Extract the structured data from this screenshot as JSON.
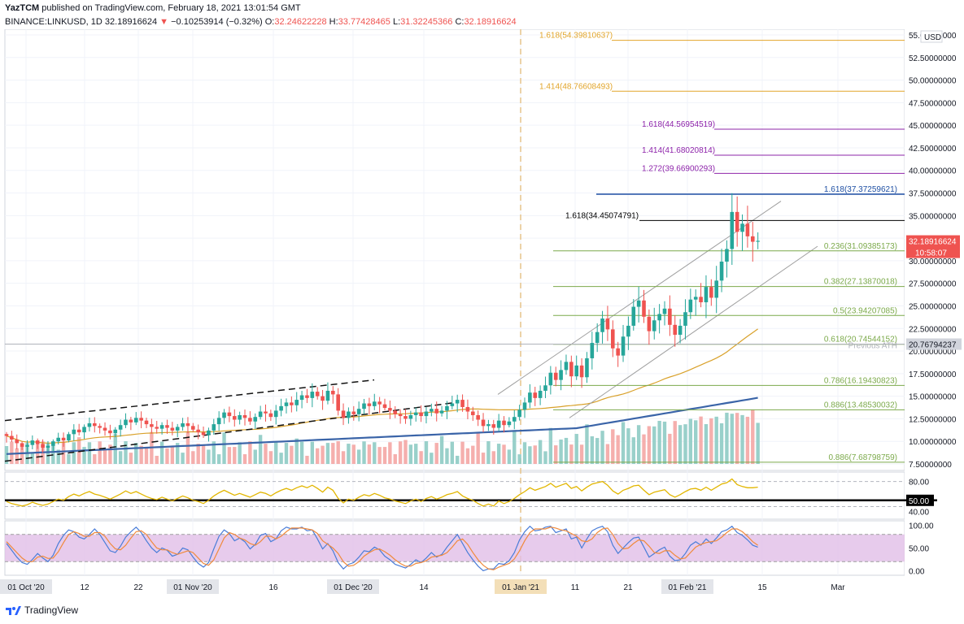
{
  "header": {
    "author": "YazTCM",
    "published_text": "published on TradingView.com, February 18, 2021 13:01:54 GMT",
    "symbol": "BINANCE:LINKUSD, 1D",
    "last": "32.18916624",
    "change_arrow": "▼",
    "change": "−0.10253914 (−0.32%)",
    "o_label": "O:",
    "o": "32.24622228",
    "h_label": "H:",
    "h": "33.77428465",
    "l_label": "L:",
    "l": "31.32245366",
    "c_label": "C:",
    "c": "32.18916624"
  },
  "footer": {
    "brand": "TradingView"
  },
  "colors": {
    "up": "#26a69a",
    "down": "#ef5350",
    "fib_orange": "#e2a52a",
    "fib_purple": "#8e24aa",
    "fib_blue": "#1e4fa3",
    "fib_green": "#7caa4b",
    "ma_blue": "#3a64a8",
    "ma_orange": "#d9a12a",
    "rsi": "#e2b600",
    "stoch_k": "#4a7dd8",
    "stoch_d": "#f08a3c",
    "stoch_band": "#e1bee7"
  },
  "chart_data": [
    {
      "type": "candlestick",
      "currency": "USD",
      "y_range": [
        7.5,
        55.0
      ],
      "y_ticks": [
        "55.00000000",
        "52.50000000",
        "50.00000000",
        "47.50000000",
        "45.00000000",
        "42.50000000",
        "40.00000000",
        "37.50000000",
        "35.00000000",
        "32.50000000",
        "30.00000000",
        "27.50000000",
        "25.00000000",
        "22.50000000",
        "20.00000000",
        "17.50000000",
        "15.00000000",
        "12.50000000",
        "10.00000000",
        "7.50000000"
      ],
      "x_ticks": [
        {
          "label": "01 Oct '20",
          "boxed": true
        },
        {
          "label": "12",
          "boxed": false
        },
        {
          "label": "22",
          "boxed": false
        },
        {
          "label": "01 Nov '20",
          "boxed": true
        },
        {
          "label": "16",
          "boxed": false
        },
        {
          "label": "01 Dec '20",
          "boxed": true
        },
        {
          "label": "14",
          "boxed": false
        },
        {
          "label": "01 Jan '21",
          "boxed": true,
          "highlight": true
        },
        {
          "label": "11",
          "boxed": false
        },
        {
          "label": "21",
          "boxed": false
        },
        {
          "label": "01 Feb '21",
          "boxed": true
        },
        {
          "label": "15",
          "boxed": false
        },
        {
          "label": "Mar",
          "boxed": false
        }
      ],
      "price_close": [
        10.6,
        10.2,
        9.8,
        9.4,
        9.6,
        10.1,
        9.7,
        9.3,
        9.5,
        10.0,
        10.4,
        10.1,
        10.8,
        11.3,
        11.0,
        11.6,
        12.0,
        11.7,
        11.5,
        11.2,
        10.9,
        11.3,
        11.8,
        12.4,
        12.1,
        12.6,
        12.3,
        11.9,
        11.6,
        11.4,
        11.8,
        11.5,
        11.2,
        11.6,
        12.0,
        11.7,
        11.3,
        11.0,
        10.7,
        11.2,
        11.9,
        12.6,
        13.2,
        12.8,
        12.4,
        12.9,
        12.6,
        12.2,
        12.7,
        13.3,
        13.1,
        12.7,
        13.4,
        13.9,
        14.3,
        14.0,
        14.6,
        15.1,
        14.8,
        15.5,
        15.0,
        14.5,
        15.6,
        15.2,
        13.4,
        12.6,
        13.3,
        13.0,
        13.6,
        14.2,
        13.9,
        14.4,
        14.1,
        13.7,
        13.4,
        13.0,
        12.8,
        12.5,
        12.9,
        13.2,
        12.8,
        13.3,
        13.6,
        13.1,
        13.4,
        13.9,
        14.2,
        14.6,
        13.8,
        13.3,
        12.9,
        12.4,
        11.7,
        11.9,
        11.5,
        12.3,
        11.8,
        12.2,
        12.7,
        13.5,
        14.3,
        15.4,
        14.8,
        15.6,
        16.2,
        17.6,
        16.8,
        17.9,
        18.8,
        17.2,
        18.4,
        17.1,
        19.2,
        20.9,
        22.1,
        23.6,
        22.4,
        20.3,
        19.5,
        21.6,
        22.8,
        24.9,
        25.6,
        23.8,
        22.2,
        23.4,
        24.1,
        24.7,
        22.9,
        21.8,
        22.8,
        24.3,
        25.7,
        26.0,
        25.4,
        27.1,
        25.9,
        27.8,
        29.9,
        31.3,
        35.4,
        33.2,
        34.1,
        32.7,
        32.1,
        32.2
      ],
      "overlays": {
        "fib_levels": [
          {
            "label": "1.618(54.39810637)",
            "value": 54.4,
            "color": "fib_orange"
          },
          {
            "label": "1.414(48.76608493)",
            "value": 48.77,
            "color": "fib_orange"
          },
          {
            "label": "1.618(44.56954519)",
            "value": 44.57,
            "color": "fib_purple"
          },
          {
            "label": "1.414(41.68020814)",
            "value": 41.68,
            "color": "fib_purple"
          },
          {
            "label": "1.272(39.66900293)",
            "value": 39.67,
            "color": "fib_purple"
          },
          {
            "label": "1.618(37.37259621)",
            "value": 37.37,
            "color": "fib_blue"
          },
          {
            "label": "1.618(34.45074791)",
            "value": 34.45,
            "color": "black"
          },
          {
            "label": "0.236(31.09385173)",
            "value": 31.09,
            "color": "fib_green"
          },
          {
            "label": "0.382(27.13870018)",
            "value": 27.14,
            "color": "fib_green"
          },
          {
            "label": "0.5(23.94207085)",
            "value": 23.94,
            "color": "fib_green"
          },
          {
            "label": "0.618(20.74544152)",
            "value": 20.75,
            "color": "fib_green"
          },
          {
            "label": "0.786(16.19430823)",
            "value": 16.19,
            "color": "fib_green"
          },
          {
            "label": "0.886(13.48530032)",
            "value": 13.49,
            "color": "fib_green"
          },
          {
            "label": "0.886(7.68798759)",
            "value": 7.69,
            "color": "fib_green"
          }
        ],
        "previous_ath": {
          "label": "Previous ATH",
          "value": 20.77,
          "axis_label": "20.76794237"
        },
        "current_price_tag": {
          "value": "32.18916624",
          "countdown": "10:58:07"
        }
      }
    },
    {
      "type": "line",
      "name": "RSI",
      "y_ticks": [
        "80.00",
        "50.00",
        "40.00"
      ],
      "y_range": [
        20,
        95
      ],
      "values": [
        48,
        45,
        43,
        41,
        43,
        47,
        44,
        42,
        44,
        48,
        52,
        50,
        56,
        60,
        57,
        61,
        64,
        60,
        58,
        55,
        52,
        56,
        60,
        65,
        61,
        64,
        60,
        56,
        53,
        51,
        55,
        52,
        49,
        53,
        57,
        54,
        50,
        48,
        45,
        50,
        57,
        62,
        66,
        62,
        58,
        61,
        58,
        55,
        59,
        63,
        61,
        57,
        62,
        66,
        69,
        66,
        70,
        73,
        70,
        74,
        69,
        63,
        71,
        66,
        53,
        46,
        52,
        50,
        55,
        59,
        57,
        61,
        58,
        54,
        52,
        49,
        47,
        45,
        49,
        52,
        48,
        53,
        56,
        52,
        55,
        59,
        61,
        64,
        57,
        53,
        50,
        45,
        41,
        44,
        41,
        49,
        45,
        48,
        53,
        59,
        64,
        70,
        66,
        69,
        72,
        77,
        71,
        74,
        77,
        69,
        72,
        65,
        71,
        76,
        78,
        80,
        74,
        65,
        60,
        66,
        69,
        73,
        74,
        66,
        59,
        63,
        65,
        67,
        59,
        55,
        59,
        64,
        68,
        69,
        66,
        71,
        66,
        71,
        76,
        78,
        84,
        75,
        72,
        70,
        70,
        71
      ]
    },
    {
      "type": "line",
      "name": "Stoch RSI",
      "y_ticks": [
        "100.00",
        "50.00",
        "0.00"
      ],
      "y_range": [
        -10,
        110
      ],
      "series": [
        {
          "values": [
            60,
            45,
            30,
            18,
            14,
            25,
            38,
            28,
            20,
            34,
            60,
            78,
            90,
            86,
            74,
            70,
            80,
            92,
            80,
            62,
            44,
            40,
            54,
            74,
            86,
            96,
            84,
            66,
            50,
            40,
            50,
            45,
            32,
            36,
            50,
            46,
            30,
            16,
            8,
            18,
            48,
            76,
            90,
            82,
            66,
            72,
            64,
            48,
            58,
            78,
            82,
            64,
            70,
            88,
            96,
            92,
            92,
            96,
            88,
            90,
            70,
            48,
            60,
            44,
            18,
            4,
            14,
            18,
            30,
            44,
            42,
            52,
            46,
            32,
            24,
            14,
            10,
            6,
            14,
            24,
            18,
            28,
            40,
            30,
            36,
            52,
            66,
            80,
            60,
            40,
            24,
            10,
            0,
            4,
            4,
            16,
            14,
            22,
            40,
            68,
            86,
            98,
            88,
            90,
            96,
            98,
            84,
            88,
            92,
            70,
            74,
            50,
            70,
            88,
            94,
            98,
            86,
            56,
            38,
            50,
            62,
            72,
            74,
            52,
            30,
            38,
            46,
            52,
            32,
            22,
            24,
            38,
            56,
            64,
            56,
            70,
            60,
            72,
            86,
            90,
            98,
            84,
            78,
            68,
            56,
            52
          ]
        },
        {
          "values": [
            64,
            52,
            40,
            28,
            20,
            20,
            30,
            32,
            27,
            28,
            42,
            62,
            80,
            86,
            82,
            76,
            76,
            84,
            84,
            76,
            60,
            48,
            46,
            56,
            72,
            86,
            88,
            80,
            64,
            50,
            46,
            46,
            40,
            36,
            40,
            44,
            40,
            28,
            16,
            12,
            24,
            48,
            72,
            84,
            80,
            72,
            68,
            60,
            56,
            64,
            76,
            76,
            70,
            76,
            86,
            94,
            94,
            94,
            92,
            90,
            82,
            66,
            58,
            50,
            38,
            20,
            10,
            12,
            20,
            32,
            40,
            46,
            48,
            42,
            34,
            24,
            16,
            10,
            10,
            16,
            18,
            22,
            30,
            32,
            34,
            40,
            52,
            66,
            70,
            58,
            40,
            24,
            12,
            4,
            2,
            8,
            12,
            16,
            26,
            44,
            66,
            84,
            92,
            92,
            92,
            96,
            94,
            90,
            88,
            82,
            76,
            66,
            64,
            70,
            84,
            92,
            94,
            80,
            60,
            48,
            50,
            60,
            68,
            66,
            54,
            40,
            38,
            44,
            44,
            34,
            26,
            28,
            40,
            52,
            58,
            62,
            64,
            66,
            74,
            84,
            92,
            92,
            86,
            76,
            64,
            56
          ]
        }
      ]
    }
  ]
}
